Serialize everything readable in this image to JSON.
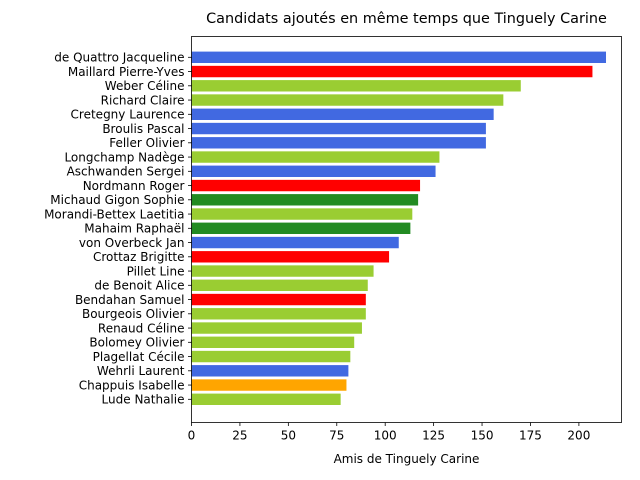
{
  "chart_data": {
    "type": "bar",
    "orientation": "horizontal",
    "title": "Candidats ajoutés en même temps que Tinguely Carine",
    "xlabel": "Amis de Tinguely Carine",
    "ylabel": "",
    "xlim": [
      0,
      222
    ],
    "xticks": [
      0,
      25,
      50,
      75,
      100,
      125,
      150,
      175,
      200
    ],
    "grid": false,
    "categories": [
      "de Quattro Jacqueline",
      "Maillard Pierre-Yves",
      "Weber Céline",
      "Richard Claire",
      "Cretegny Laurence",
      "Broulis Pascal",
      "Feller Olivier",
      "Longchamp Nadège",
      "Aschwanden Sergei",
      "Nordmann Roger",
      "Michaud Gigon Sophie",
      "Morandi-Bettex Laetitia",
      "Mahaim Raphaël",
      "von Overbeck Jan",
      "Crottaz Brigitte",
      "Pillet Line",
      "de Benoit Alice",
      "Bendahan Samuel",
      "Bourgeois Olivier",
      "Renaud Céline",
      "Bolomey Olivier",
      "Plagellat Cécile",
      "Wehrli Laurent",
      "Chappuis Isabelle",
      "Lude Nathalie"
    ],
    "values": [
      214,
      207,
      170,
      161,
      156,
      152,
      152,
      128,
      126,
      118,
      117,
      114,
      113,
      107,
      102,
      94,
      91,
      90,
      90,
      88,
      84,
      82,
      81,
      80,
      77
    ],
    "colors": [
      "#4169e1",
      "#ff0000",
      "#9acd32",
      "#9acd32",
      "#4169e1",
      "#4169e1",
      "#4169e1",
      "#9acd32",
      "#4169e1",
      "#ff0000",
      "#228b22",
      "#9acd32",
      "#228b22",
      "#4169e1",
      "#ff0000",
      "#9acd32",
      "#9acd32",
      "#ff0000",
      "#9acd32",
      "#9acd32",
      "#9acd32",
      "#9acd32",
      "#4169e1",
      "#ffa500",
      "#9acd32"
    ]
  }
}
